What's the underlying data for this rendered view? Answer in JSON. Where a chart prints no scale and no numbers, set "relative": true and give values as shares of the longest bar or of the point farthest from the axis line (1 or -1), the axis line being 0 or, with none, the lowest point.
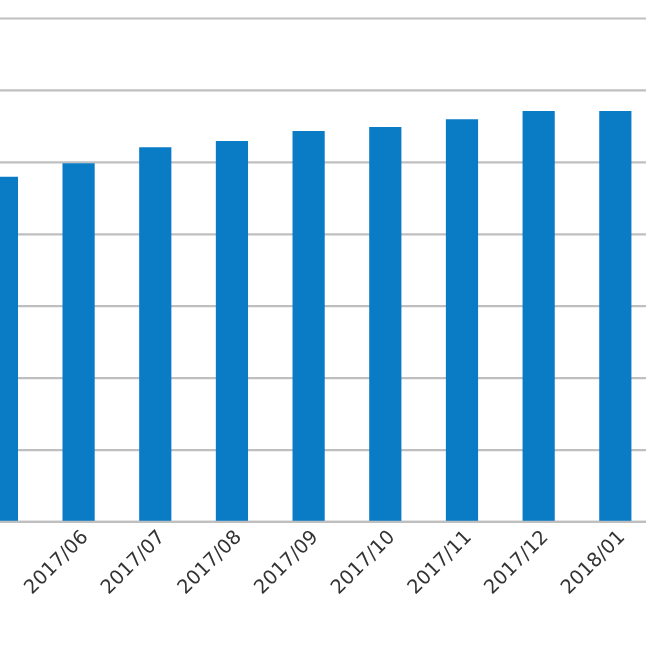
{
  "chart_data": {
    "type": "bar",
    "relative": true,
    "grid": "y",
    "categories": [
      null,
      "2017/06",
      "2017/07",
      "2017/08",
      "2017/09",
      "2017/10",
      "2017/11",
      "2017/12",
      "2018/01"
    ],
    "values": [
      0.84,
      0.873,
      0.912,
      0.927,
      0.951,
      0.961,
      0.98,
      1,
      1
    ],
    "color": "#0a7cc6"
  }
}
